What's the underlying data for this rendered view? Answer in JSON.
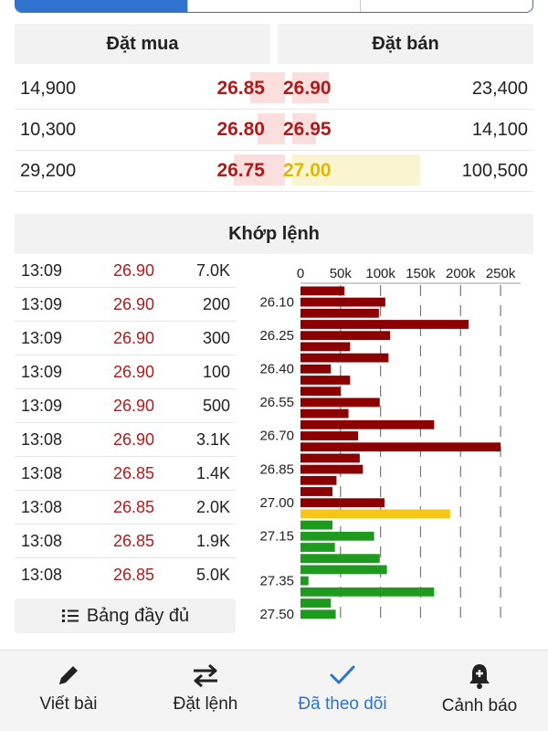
{
  "orderbook": {
    "buy_header": "Đặt mua",
    "sell_header": "Đặt bán",
    "rows": [
      {
        "bid_qty": "14,900",
        "bid_price": "26.85",
        "ask_price": "26.90",
        "ask_qty": "23,400"
      },
      {
        "bid_qty": "10,300",
        "bid_price": "26.80",
        "ask_price": "26.95",
        "ask_qty": "14,100"
      },
      {
        "bid_qty": "29,200",
        "bid_price": "26.75",
        "ask_price": "27.00",
        "ask_qty": "100,500"
      }
    ],
    "colors": {
      "price_red": "#b11a1a",
      "price_yellow": "#e1b700",
      "bar_red": "#fbdede",
      "bar_yellow": "#fbf4d0"
    }
  },
  "matched": {
    "title": "Khớp lệnh",
    "trades": [
      {
        "time": "13:09",
        "price": "26.90",
        "vol": "7.0K"
      },
      {
        "time": "13:09",
        "price": "26.90",
        "vol": "200"
      },
      {
        "time": "13:09",
        "price": "26.90",
        "vol": "300"
      },
      {
        "time": "13:09",
        "price": "26.90",
        "vol": "100"
      },
      {
        "time": "13:09",
        "price": "26.90",
        "vol": "500"
      },
      {
        "time": "13:08",
        "price": "26.90",
        "vol": "3.1K"
      },
      {
        "time": "13:08",
        "price": "26.85",
        "vol": "1.4K"
      },
      {
        "time": "13:08",
        "price": "26.85",
        "vol": "2.0K"
      },
      {
        "time": "13:08",
        "price": "26.85",
        "vol": "1.9K"
      },
      {
        "time": "13:08",
        "price": "26.85",
        "vol": "5.0K"
      }
    ],
    "full_table_label": "Bảng đầy đủ"
  },
  "chart_data": {
    "type": "bar",
    "orientation": "horizontal",
    "x_ticks": [
      "0",
      "50k",
      "100k",
      "150k",
      "200k",
      "250k"
    ],
    "xlim": [
      0,
      275000
    ],
    "y_tick_labels": [
      "26.10",
      "26.25",
      "26.40",
      "26.55",
      "26.70",
      "26.85",
      "27.00",
      "27.15",
      "27.35",
      "27.50"
    ],
    "categories": [
      "26.05",
      "26.10",
      "26.15",
      "26.20",
      "26.25",
      "26.30",
      "26.35",
      "26.40",
      "26.45",
      "26.50",
      "26.55",
      "26.60",
      "26.65",
      "26.70",
      "26.75",
      "26.80",
      "26.85",
      "26.90",
      "26.95",
      "27.00",
      "27.05",
      "27.10",
      "27.15",
      "27.20",
      "27.25",
      "27.30",
      "27.35",
      "27.40",
      "27.45",
      "27.50"
    ],
    "values": [
      55000,
      106000,
      98000,
      210000,
      112000,
      62000,
      110000,
      38000,
      62000,
      50000,
      99000,
      60000,
      167000,
      72000,
      250000,
      74000,
      78000,
      45000,
      40000,
      105000,
      187000,
      40000,
      92000,
      43000,
      99000,
      108000,
      10000,
      167000,
      38000,
      44000
    ],
    "colors": [
      "#8b0000",
      "#8b0000",
      "#8b0000",
      "#8b0000",
      "#8b0000",
      "#8b0000",
      "#8b0000",
      "#8b0000",
      "#8b0000",
      "#8b0000",
      "#8b0000",
      "#8b0000",
      "#8b0000",
      "#8b0000",
      "#8b0000",
      "#8b0000",
      "#8b0000",
      "#8b0000",
      "#8b0000",
      "#8b0000",
      "#f5c518",
      "#1e9a1e",
      "#1e9a1e",
      "#1e9a1e",
      "#1e9a1e",
      "#1e9a1e",
      "#1e9a1e",
      "#1e9a1e",
      "#1e9a1e",
      "#1e9a1e"
    ],
    "grid": true
  },
  "tabbar": {
    "items": [
      {
        "label": "Viết bài",
        "icon": "pencil-icon"
      },
      {
        "label": "Đặt lệnh",
        "icon": "swap-arrows-icon"
      },
      {
        "label": "Đã theo dõi",
        "icon": "checkmark-icon"
      },
      {
        "label": "Cảnh báo",
        "icon": "bell-plus-icon"
      }
    ],
    "active_color": "#2f73cf"
  }
}
